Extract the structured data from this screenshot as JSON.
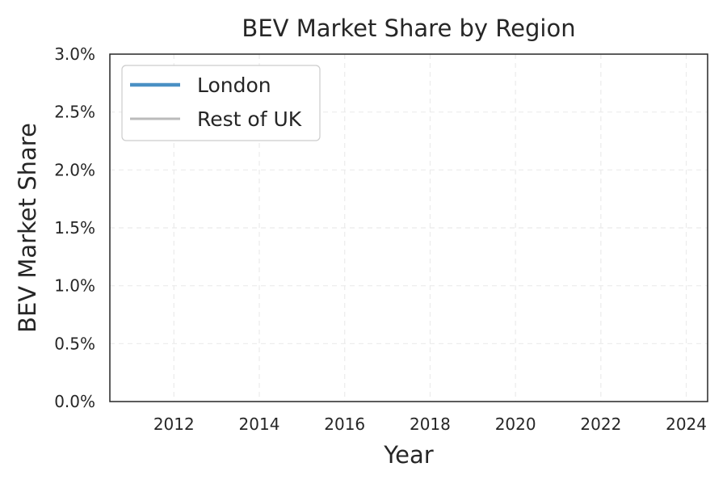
{
  "chart_data": {
    "type": "line",
    "title": "BEV Market Share by Region",
    "xlabel": "Year",
    "ylabel": "BEV Market Share",
    "xlim": [
      2010.5,
      2024.5
    ],
    "ylim": [
      0,
      3.0
    ],
    "xticks": [
      2012,
      2014,
      2016,
      2018,
      2020,
      2022,
      2024
    ],
    "xtick_labels": [
      "2012",
      "2014",
      "2016",
      "2018",
      "2020",
      "2022",
      "2024"
    ],
    "yticks": [
      0,
      0.5,
      1.0,
      1.5,
      2.0,
      2.5,
      3.0
    ],
    "ytick_labels": [
      "0.0%",
      "0.5%",
      "1.0%",
      "1.5%",
      "2.0%",
      "2.5%",
      "3.0%"
    ],
    "grid": true,
    "legend_position": "top-left",
    "series": [
      {
        "name": "London",
        "color": "#4a90c4",
        "x": [],
        "y": []
      },
      {
        "name": "Rest of UK",
        "color": "#bbbbbb",
        "x": [],
        "y": []
      }
    ]
  }
}
